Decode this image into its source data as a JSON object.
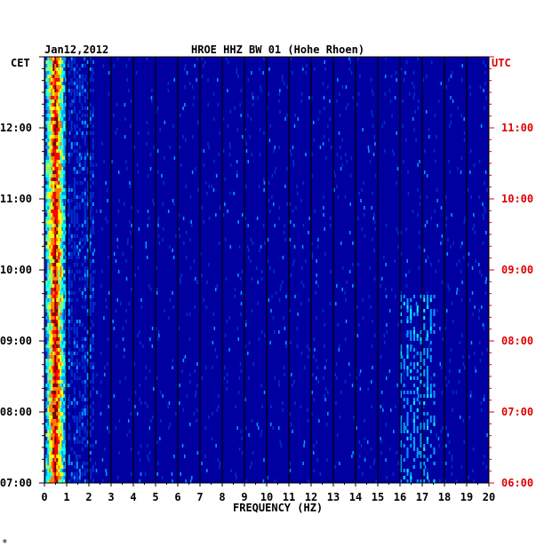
{
  "chart_data": {
    "type": "heatmap",
    "date": "Jan12,2012",
    "title": "HROE HHZ BW 01 (Hohe Rhoen)",
    "xlabel": "FREQUENCY (HZ)",
    "left_zone": "CET",
    "right_zone": "UTC",
    "x_range": [
      0,
      20
    ],
    "x_ticks": [
      "0",
      "1",
      "2",
      "3",
      "4",
      "5",
      "6",
      "7",
      "8",
      "9",
      "10",
      "11",
      "12",
      "13",
      "14",
      "15",
      "16",
      "17",
      "18",
      "19",
      "20"
    ],
    "cet_ticks": [
      "07:00",
      "08:00",
      "09:00",
      "10:00",
      "11:00",
      "12:00"
    ],
    "utc_ticks": [
      "06:00",
      "07:00",
      "08:00",
      "09:00",
      "10:00",
      "11:00"
    ],
    "time_range_cet": [
      "07:00",
      "13:00"
    ],
    "palette": [
      "#0000a0",
      "#0030d0",
      "#00a0ff",
      "#00ffff",
      "#80ff80",
      "#ffff00",
      "#ff8000",
      "#ff0000",
      "#800000"
    ],
    "background_color": "#0000a0",
    "utc_color": "#e00000"
  }
}
